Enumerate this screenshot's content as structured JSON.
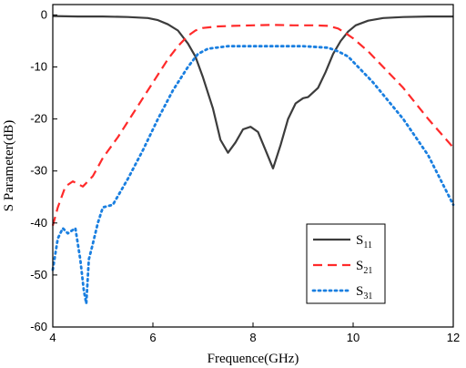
{
  "chart_data": {
    "type": "line",
    "xlabel": "Frequence(GHz)",
    "ylabel": "S Parameter(dB)",
    "xlim": [
      4,
      12
    ],
    "ylim": [
      -60,
      2
    ],
    "x_ticks": [
      4,
      6,
      8,
      10,
      12
    ],
    "y_ticks": [
      0,
      -10,
      -20,
      -30,
      -40,
      -50,
      -60
    ],
    "x_tick_labels": [
      "4",
      "6",
      "8",
      "10",
      "12"
    ],
    "y_tick_labels": [
      "0",
      "-10",
      "-20",
      "-30",
      "-40",
      "-50",
      "-60"
    ],
    "legend_position": "bottom-right",
    "series": [
      {
        "name": "S11",
        "label_main": "S",
        "label_sub": "11",
        "color": "#3c3c3c",
        "style": "solid",
        "x": [
          4.0,
          4.5,
          5.0,
          5.5,
          5.9,
          6.1,
          6.3,
          6.5,
          6.7,
          6.85,
          7.0,
          7.2,
          7.35,
          7.5,
          7.65,
          7.8,
          7.95,
          8.1,
          8.25,
          8.4,
          8.55,
          8.7,
          8.85,
          9.0,
          9.1,
          9.3,
          9.45,
          9.6,
          9.75,
          9.9,
          10.05,
          10.3,
          10.6,
          11.0,
          11.5,
          12.0
        ],
        "y": [
          -0.2,
          -0.3,
          -0.3,
          -0.4,
          -0.6,
          -1.0,
          -1.8,
          -3.0,
          -5.5,
          -8.0,
          -12.0,
          -18.0,
          -24.0,
          -26.5,
          -24.5,
          -22.0,
          -21.5,
          -22.5,
          -26.0,
          -29.5,
          -25.0,
          -20.0,
          -17.0,
          -16.0,
          -15.8,
          -14.0,
          -11.0,
          -7.5,
          -5.0,
          -3.2,
          -2.0,
          -1.1,
          -0.6,
          -0.4,
          -0.3,
          -0.3
        ]
      },
      {
        "name": "S21",
        "label_main": "S",
        "label_sub": "21",
        "color": "#ff2a2a",
        "style": "dashed",
        "x": [
          4.0,
          4.1,
          4.25,
          4.4,
          4.6,
          4.8,
          5.0,
          5.3,
          5.6,
          6.0,
          6.3,
          6.5,
          6.7,
          6.85,
          7.0,
          7.3,
          7.6,
          8.0,
          8.4,
          8.8,
          9.2,
          9.5,
          9.7,
          9.85,
          10.0,
          10.3,
          10.6,
          11.0,
          11.5,
          12.0
        ],
        "y": [
          -40.5,
          -37.0,
          -33.0,
          -32.0,
          -33.0,
          -31.0,
          -27.5,
          -23.5,
          -19.0,
          -13.0,
          -8.5,
          -6.0,
          -4.0,
          -3.0,
          -2.5,
          -2.2,
          -2.1,
          -2.0,
          -1.9,
          -2.0,
          -2.0,
          -2.1,
          -2.6,
          -3.5,
          -4.5,
          -7.0,
          -10.0,
          -14.0,
          -20.0,
          -25.5
        ]
      },
      {
        "name": "S31",
        "label_main": "S",
        "label_sub": "31",
        "color": "#1a7fe0",
        "style": "dotted",
        "x": [
          4.0,
          4.1,
          4.2,
          4.3,
          4.45,
          4.55,
          4.62,
          4.67,
          4.72,
          4.8,
          4.9,
          5.0,
          5.2,
          5.5,
          5.8,
          6.1,
          6.4,
          6.7,
          6.9,
          7.1,
          7.5,
          8.0,
          8.5,
          9.0,
          9.5,
          9.7,
          9.9,
          10.1,
          10.4,
          10.7,
          11.0,
          11.5,
          12.0
        ],
        "y": [
          -49.0,
          -43.0,
          -41.0,
          -42.0,
          -41.0,
          -47.0,
          -53.0,
          -55.5,
          -47.0,
          -44.0,
          -40.0,
          -37.0,
          -36.5,
          -31.5,
          -26.0,
          -20.0,
          -14.5,
          -10.0,
          -7.5,
          -6.5,
          -6.0,
          -6.0,
          -6.0,
          -6.0,
          -6.3,
          -7.0,
          -8.0,
          -10.0,
          -13.0,
          -16.5,
          -20.0,
          -27.0,
          -36.5
        ]
      }
    ]
  }
}
